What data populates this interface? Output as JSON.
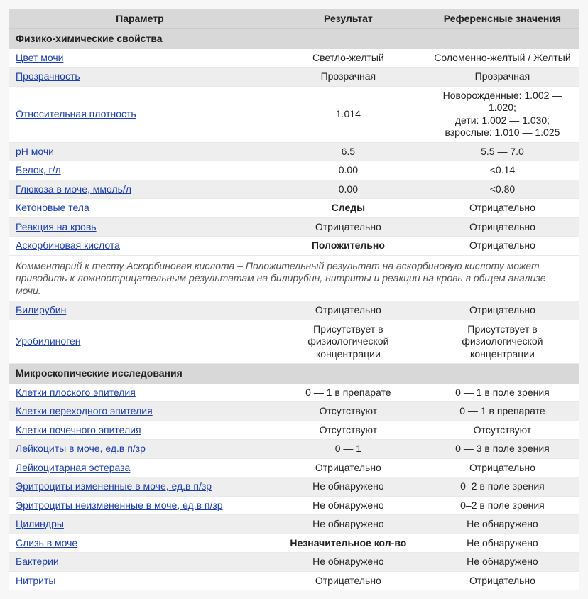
{
  "colors": {
    "header_bg": "#d8d8d8",
    "stripe_bg": "#eeeeee",
    "link_color": "#1b3ea8",
    "comment_color": "#555555",
    "border": "#e9e9e9",
    "page_bg": "#f7f7f8"
  },
  "columns": {
    "parameter": "Параметр",
    "result": "Результат",
    "reference": "Референсные значения"
  },
  "rows": [
    {
      "type": "section",
      "label": "Физико-химические свойства"
    },
    {
      "type": "data",
      "param": "Цвет мочи",
      "link": true,
      "result": "Светло-желтый",
      "ref": "Соломенно-желтый / Желтый",
      "stripe": false
    },
    {
      "type": "data",
      "param": "Прозрачность",
      "link": true,
      "result": "Прозрачная",
      "ref": "Прозрачная",
      "stripe": true
    },
    {
      "type": "data",
      "param": "Относительная плотность",
      "link": true,
      "result": "1.014",
      "ref": "Новорожденные: 1.002 — 1.020;\nдети: 1.002 — 1.030;\nвзрослые: 1.010 — 1.025",
      "stripe": false
    },
    {
      "type": "data",
      "param": "pH мочи",
      "link": true,
      "result": "6.5",
      "ref": "5.5 — 7.0",
      "stripe": true
    },
    {
      "type": "data",
      "param": "Белок, г/л",
      "link": true,
      "result": "0.00",
      "ref": "<0.14",
      "stripe": false
    },
    {
      "type": "data",
      "param": "Глюкоза в моче, ммоль/л",
      "link": true,
      "result": "0.00",
      "ref": "<0.80",
      "stripe": true
    },
    {
      "type": "data",
      "param": "Кетоновые тела",
      "link": true,
      "result": "Следы",
      "result_bold": true,
      "ref": "Отрицательно",
      "stripe": false
    },
    {
      "type": "data",
      "param": "Реакция на кровь",
      "link": true,
      "result": "Отрицательно",
      "ref": "Отрицательно",
      "stripe": true
    },
    {
      "type": "data",
      "param": "Аскорбиновая кислота",
      "link": true,
      "result": "Положительно",
      "result_bold": true,
      "ref": "Отрицательно",
      "stripe": false
    },
    {
      "type": "comment",
      "text": "Комментарий к тесту Аскорбиновая кислота – Положительный результат на аскорбиновую кислоту может приводить к ложноотрицательным результатам на билирубин, нитриты и реакции на кровь в общем анализе мочи."
    },
    {
      "type": "data",
      "param": "Билирубин",
      "link": true,
      "result": "Отрицательно",
      "ref": "Отрицательно",
      "stripe": true
    },
    {
      "type": "data",
      "param": "Уробилиноген",
      "link": true,
      "result": "Присутствует в физиологической концентрации",
      "ref": "Присутствует в физиологической концентрации",
      "stripe": false
    },
    {
      "type": "section",
      "label": "Микроскопические исследования"
    },
    {
      "type": "data",
      "param": "Клетки плоского эпителия",
      "link": true,
      "result": "0 — 1 в препарате",
      "ref": "0 — 1 в поле зрения",
      "stripe": false
    },
    {
      "type": "data",
      "param": "Клетки переходного эпителия",
      "link": true,
      "result": "Отсутствуют",
      "ref": "0 — 1 в препарате",
      "stripe": true
    },
    {
      "type": "data",
      "param": "Клетки почечного эпителия",
      "link": true,
      "result": "Отсутствуют",
      "ref": "Отсутствуют",
      "stripe": false
    },
    {
      "type": "data",
      "param": "Лейкоциты в моче, ед.в п/зр",
      "link": true,
      "result": "0 — 1",
      "ref": "0 — 3 в поле зрения",
      "stripe": true
    },
    {
      "type": "data",
      "param": "Лейкоцитарная эстераза",
      "link": true,
      "result": "Отрицательно",
      "ref": "Отрицательно",
      "stripe": false
    },
    {
      "type": "data",
      "param": "Эритроциты измененные в моче, ед.в п/зр",
      "link": true,
      "result": "Не обнаружено",
      "ref": "0–2 в поле зрения",
      "stripe": true
    },
    {
      "type": "data",
      "param": "Эритроциты неизмененные в моче, ед.в п/зр",
      "link": true,
      "result": "Не обнаружено",
      "ref": "0–2 в поле зрения",
      "stripe": false
    },
    {
      "type": "data",
      "param": "Цилиндры",
      "link": true,
      "result": "Не обнаружено",
      "ref": "Не обнаружено",
      "stripe": true
    },
    {
      "type": "data",
      "param": "Слизь в моче",
      "link": true,
      "result": "Незначительное кол-во",
      "result_bold": true,
      "ref": "Не обнаружено",
      "stripe": false
    },
    {
      "type": "data",
      "param": "Бактерии",
      "link": true,
      "result": "Не обнаружено",
      "ref": "Не обнаружено",
      "stripe": true
    },
    {
      "type": "data",
      "param": "Нитриты",
      "link": true,
      "result": "Отрицательно",
      "ref": "Отрицательно",
      "stripe": false
    }
  ]
}
